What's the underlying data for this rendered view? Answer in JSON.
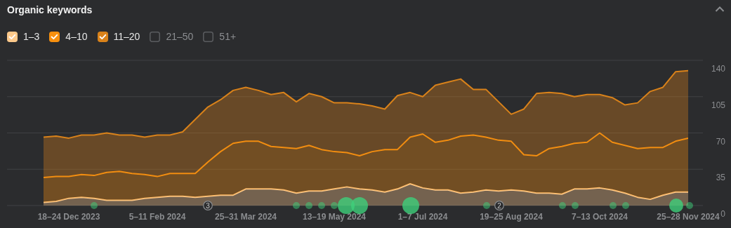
{
  "chart_data": {
    "type": "area",
    "title": "Organic keywords",
    "categories": [
      null,
      null,
      "18–24 Dec 2023",
      null,
      null,
      null,
      null,
      null,
      null,
      "5–11 Feb 2024",
      null,
      null,
      null,
      null,
      null,
      null,
      "25–31 Mar 2024",
      null,
      null,
      null,
      null,
      null,
      null,
      "13–19 May 2024",
      null,
      null,
      null,
      null,
      null,
      null,
      "1–7 Jul 2024",
      null,
      null,
      null,
      null,
      null,
      null,
      "19–25 Aug 2024",
      null,
      null,
      null,
      null,
      null,
      null,
      "7–13 Oct 2024",
      null,
      null,
      null,
      null,
      null,
      null,
      "25–28 Nov 2024"
    ],
    "stacked": true,
    "series": [
      {
        "name": "1–3",
        "color": "#fcc98b",
        "values": [
          3,
          4,
          7,
          8,
          7,
          5,
          5,
          5,
          7,
          8,
          9,
          9,
          8,
          9,
          10,
          10,
          16,
          16,
          16,
          15,
          12,
          14,
          14,
          16,
          18,
          16,
          15,
          13,
          16,
          21,
          17,
          15,
          15,
          12,
          13,
          15,
          14,
          15,
          14,
          12,
          12,
          11,
          16,
          16,
          17,
          15,
          12,
          8,
          6,
          10,
          13,
          13
        ]
      },
      {
        "name": "4–10",
        "color": "#f7900f",
        "values": [
          24,
          24,
          21,
          22,
          22,
          27,
          28,
          26,
          23,
          20,
          22,
          22,
          23,
          33,
          42,
          50,
          46,
          46,
          41,
          41,
          43,
          44,
          40,
          36,
          33,
          32,
          37,
          41,
          38,
          45,
          52,
          46,
          48,
          55,
          55,
          51,
          49,
          47,
          35,
          36,
          43,
          46,
          44,
          45,
          53,
          46,
          46,
          47,
          50,
          46,
          49,
          52
        ]
      },
      {
        "name": "11–20",
        "color": "#d9821a",
        "values": [
          39,
          39,
          37,
          38,
          39,
          38,
          35,
          37,
          36,
          40,
          37,
          40,
          52,
          53,
          50,
          51,
          52,
          49,
          50,
          53,
          45,
          50,
          51,
          47,
          48,
          50,
          44,
          39,
          52,
          43,
          36,
          55,
          56,
          55,
          44,
          46,
          37,
          26,
          44,
          60,
          54,
          51,
          45,
          46,
          37,
          43,
          39,
          44,
          54,
          58,
          67,
          65
        ]
      },
      {
        "name": "21–50",
        "color": "#5a5c5f",
        "values": [
          null,
          null,
          null,
          null,
          null,
          null,
          null,
          null,
          null,
          null,
          null,
          null,
          null,
          null,
          null,
          null,
          null,
          null,
          null,
          null,
          null,
          null,
          null,
          null,
          null,
          null,
          null,
          null,
          null,
          null,
          null,
          null,
          null,
          null,
          null,
          null,
          null,
          null,
          null,
          null,
          null,
          null,
          null,
          null,
          null,
          null,
          null,
          null,
          null,
          null,
          null,
          null
        ]
      },
      {
        "name": "51+",
        "color": "#5a5c5f",
        "values": [
          null,
          null,
          null,
          null,
          null,
          null,
          null,
          null,
          null,
          null,
          null,
          null,
          null,
          null,
          null,
          null,
          null,
          null,
          null,
          null,
          null,
          null,
          null,
          null,
          null,
          null,
          null,
          null,
          null,
          null,
          null,
          null,
          null,
          null,
          null,
          null,
          null,
          null,
          null,
          null,
          null,
          null,
          null,
          null,
          null,
          null,
          null,
          null,
          null,
          null,
          null,
          null
        ]
      }
    ],
    "ylim": [
      0,
      140
    ],
    "yticks": [
      0,
      35,
      70,
      105,
      140
    ],
    "grid": "y",
    "legend": "top left",
    "annotations": [
      "3",
      "2"
    ]
  }
}
